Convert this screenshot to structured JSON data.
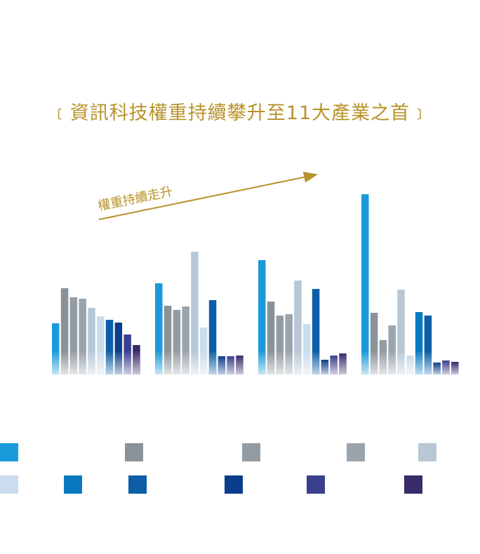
{
  "chart_data": {
    "type": "bar",
    "title": "﹝資訊科技權重持續攀升至11大產業之首﹞",
    "annotation": "權重持續走升",
    "series_colors": [
      "#1a9ad9",
      "#8a9299",
      "#949ca3",
      "#9aa4ad",
      "#b7c7d6",
      "#cadced",
      "#0a7ac0",
      "#0d5ea6",
      "#0b3d8a",
      "#3a3f8e",
      "#3a2c6a"
    ],
    "groups": [
      {
        "values": [
          73,
          123,
          110,
          108,
          95,
          83,
          78,
          74,
          57,
          42
        ]
      },
      {
        "values": [
          130,
          98,
          92,
          97,
          175,
          67,
          106,
          26,
          26,
          27
        ]
      },
      {
        "values": [
          163,
          104,
          84,
          86,
          134,
          72,
          122,
          21,
          27,
          30
        ]
      },
      {
        "values": [
          257,
          88,
          49,
          70,
          121,
          27,
          89,
          84,
          17,
          20,
          18
        ]
      }
    ],
    "legend": [
      {
        "color": "#1a9ad9"
      },
      {
        "color": "#8a9299"
      },
      {
        "color": "#949ca3"
      },
      {
        "color": "#9aa4ad"
      },
      {
        "color": "#b7c7d6"
      },
      {
        "color": "#cadced"
      },
      {
        "color": "#0a7ac0"
      },
      {
        "color": "#0d5ea6"
      },
      {
        "color": "#0b3d8a"
      },
      {
        "color": "#3a3f8e"
      },
      {
        "color": "#3a2c6a"
      }
    ],
    "grid": false
  }
}
